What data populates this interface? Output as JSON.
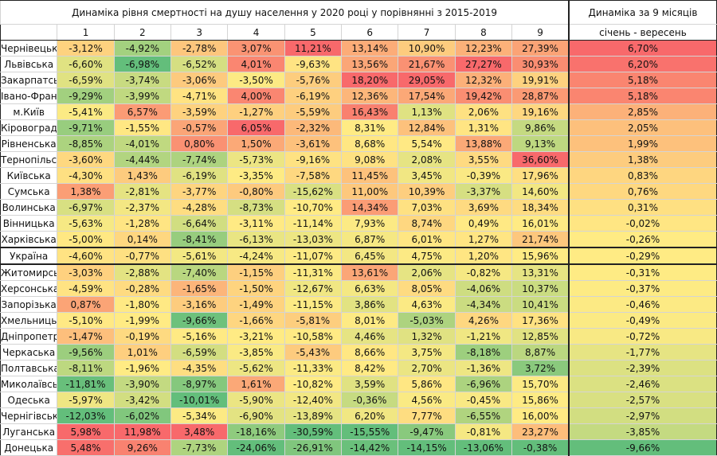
{
  "chart_data": {
    "type": "heatmap",
    "title": "Динаміка рівня смертності на душу населення у 2020 році у порівнянні з 2015-2019",
    "summary_title": "Динаміка за 9 місяців",
    "summary_subtitle": "січень - вересень",
    "columns": [
      "1",
      "2",
      "3",
      "4",
      "5",
      "6",
      "7",
      "8",
      "9"
    ],
    "color_scale": {
      "low": "#63BE7B",
      "mid": "#FFEB84",
      "high": "#F8696B"
    },
    "rows": [
      {
        "name": "Чернівецька",
        "values": [
          -3.12,
          -4.92,
          -2.78,
          3.07,
          11.21,
          13.14,
          10.9,
          12.23,
          27.39
        ],
        "total": 6.7
      },
      {
        "name": "Львівська",
        "values": [
          -6.6,
          -6.98,
          -6.52,
          4.01,
          -9.63,
          13.56,
          21.67,
          27.27,
          30.93
        ],
        "total": 6.2
      },
      {
        "name": "Закарпатська",
        "values": [
          -6.59,
          -3.74,
          -3.06,
          -3.5,
          -5.76,
          18.2,
          29.05,
          12.32,
          19.91
        ],
        "total": 5.18
      },
      {
        "name": "Івано-Франківська",
        "values": [
          -9.29,
          -3.99,
          -4.71,
          4.0,
          -6.19,
          12.36,
          17.54,
          19.42,
          28.87
        ],
        "total": 5.18
      },
      {
        "name": "м.Київ",
        "values": [
          -5.41,
          6.57,
          -3.59,
          -1.27,
          -5.59,
          16.43,
          1.13,
          2.06,
          19.16
        ],
        "total": 2.85
      },
      {
        "name": "Кіровоградська",
        "values": [
          -9.71,
          -1.55,
          -0.57,
          6.05,
          -2.32,
          8.31,
          12.84,
          1.31,
          9.86
        ],
        "total": 2.05
      },
      {
        "name": "Рівненська",
        "values": [
          -8.85,
          -4.01,
          0.8,
          1.5,
          -3.61,
          8.68,
          5.54,
          13.88,
          9.13
        ],
        "total": 1.99
      },
      {
        "name": "Тернопільська",
        "values": [
          -3.6,
          -4.44,
          -7.74,
          -5.73,
          -9.16,
          9.08,
          2.08,
          3.55,
          36.6
        ],
        "total": 1.38
      },
      {
        "name": "Київська",
        "values": [
          -4.3,
          1.43,
          -6.19,
          -3.35,
          -7.58,
          11.45,
          3.45,
          -0.39,
          17.96
        ],
        "total": 0.83
      },
      {
        "name": "Сумська",
        "values": [
          1.38,
          -2.81,
          -3.77,
          -0.8,
          -15.62,
          11.0,
          10.39,
          -3.37,
          14.6
        ],
        "total": 0.76
      },
      {
        "name": "Волинська",
        "values": [
          -6.97,
          -2.37,
          -4.28,
          -8.73,
          -10.7,
          14.34,
          7.03,
          3.69,
          18.34
        ],
        "total": 0.31
      },
      {
        "name": "Вінницька",
        "values": [
          -5.63,
          -1.28,
          -6.64,
          -3.11,
          -11.14,
          7.93,
          8.74,
          0.49,
          16.01
        ],
        "total": -0.02
      },
      {
        "name": "Харківська",
        "values": [
          -5.0,
          0.14,
          -8.41,
          -6.13,
          -13.03,
          6.87,
          6.01,
          1.27,
          21.74
        ],
        "total": -0.26
      },
      {
        "name": "Україна",
        "values": [
          -4.6,
          -0.77,
          -5.61,
          -4.24,
          -11.07,
          6.45,
          4.75,
          1.2,
          15.96
        ],
        "total": -0.29
      },
      {
        "name": "Житомирська",
        "values": [
          -3.03,
          -2.88,
          -7.4,
          -1.15,
          -11.31,
          13.61,
          2.06,
          -0.82,
          13.31
        ],
        "total": -0.31
      },
      {
        "name": "Херсонська",
        "values": [
          -4.59,
          -0.28,
          -1.65,
          -1.5,
          -12.67,
          6.63,
          8.05,
          -4.06,
          10.37
        ],
        "total": -0.37
      },
      {
        "name": "Запорізька",
        "values": [
          0.87,
          -1.8,
          -3.16,
          -1.49,
          -11.15,
          3.86,
          4.63,
          -4.34,
          10.41
        ],
        "total": -0.46
      },
      {
        "name": "Хмельницька",
        "values": [
          -5.1,
          -1.99,
          -9.66,
          -1.66,
          -5.81,
          8.01,
          -5.03,
          4.26,
          17.36
        ],
        "total": -0.49
      },
      {
        "name": "Дніпропетровська",
        "values": [
          -1.47,
          -0.19,
          -5.16,
          -3.21,
          -10.58,
          4.46,
          1.32,
          -1.21,
          12.85
        ],
        "total": -0.72
      },
      {
        "name": "Черкаська",
        "values": [
          -9.56,
          1.01,
          -6.59,
          -3.85,
          -5.43,
          8.66,
          3.75,
          -8.18,
          8.87
        ],
        "total": -1.77
      },
      {
        "name": "Полтавська",
        "values": [
          -8.11,
          -1.96,
          -4.35,
          -5.62,
          -11.33,
          8.42,
          2.7,
          -1.36,
          3.72
        ],
        "total": -2.39
      },
      {
        "name": "Миколаївська",
        "values": [
          -11.81,
          -3.9,
          -8.97,
          1.61,
          -10.82,
          3.59,
          5.86,
          -6.96,
          15.7
        ],
        "total": -2.46
      },
      {
        "name": "Одеська",
        "values": [
          -5.97,
          -3.42,
          -10.01,
          -5.9,
          -12.4,
          -0.36,
          4.56,
          -0.45,
          15.86
        ],
        "total": -2.57
      },
      {
        "name": "Чернігівська",
        "values": [
          -12.03,
          -6.02,
          -5.34,
          -6.9,
          -13.89,
          6.2,
          7.77,
          -6.55,
          16.0
        ],
        "total": -2.97
      },
      {
        "name": "Луганська",
        "values": [
          5.98,
          11.98,
          3.48,
          -18.16,
          -30.59,
          -15.55,
          -9.47,
          -0.81,
          23.27
        ],
        "total": -3.85
      },
      {
        "name": "Донецька",
        "values": [
          5.48,
          9.26,
          -7.73,
          -24.06,
          -26.91,
          -14.42,
          -14.15,
          -13.06,
          -0.38
        ],
        "total": -9.66
      }
    ]
  }
}
